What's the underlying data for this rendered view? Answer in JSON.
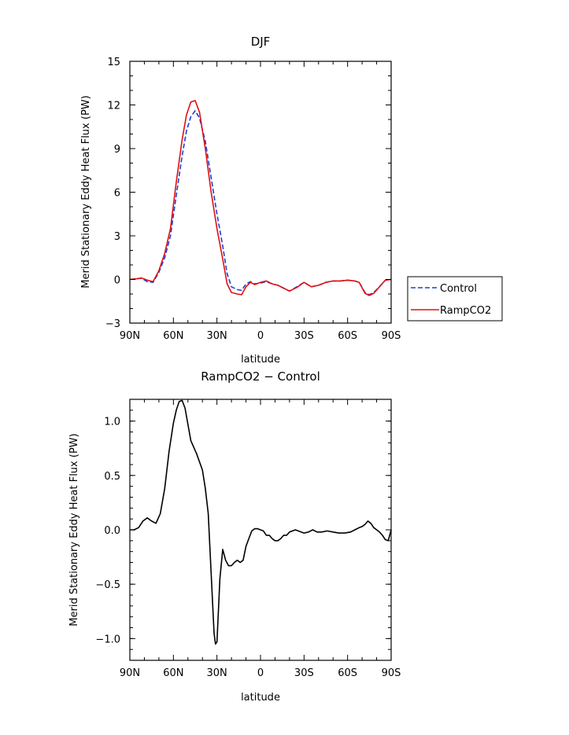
{
  "chart_data": [
    {
      "type": "line",
      "title": "DJF",
      "xlabel": "latitude",
      "ylabel": "Merid Stationary Eddy Heat Flux (PW)",
      "xlim": [
        90,
        -90
      ],
      "ylim": [
        -3,
        15
      ],
      "x_tick_values": [
        90,
        60,
        30,
        0,
        -30,
        -60,
        -90
      ],
      "x_tick_labels": [
        "90N",
        "60N",
        "30N",
        "0",
        "30S",
        "60S",
        "90S"
      ],
      "y_tick_values": [
        -3,
        0,
        3,
        6,
        9,
        12,
        15
      ],
      "y_tick_labels": [
        "−3",
        "0",
        "3",
        "6",
        "9",
        "12",
        "15"
      ],
      "legend_position": "outside-right",
      "series": [
        {
          "name": "Control",
          "style": "dashed",
          "color": "#1f3fd8",
          "x": [
            90,
            85,
            82,
            78,
            74,
            70,
            66,
            62,
            58,
            54,
            51,
            48,
            45,
            42,
            38,
            34,
            30,
            26,
            23,
            20,
            16,
            13,
            10,
            7,
            4,
            0,
            -4,
            -8,
            -12,
            -16,
            -20,
            -25,
            -30,
            -35,
            -40,
            -45,
            -50,
            -55,
            -60,
            -65,
            -68,
            -72,
            -75,
            -78,
            -82,
            -86,
            -90
          ],
          "y": [
            0.0,
            0.05,
            0.08,
            -0.15,
            -0.2,
            0.5,
            1.5,
            3.0,
            5.8,
            8.5,
            10.2,
            11.2,
            11.6,
            11.1,
            9.5,
            7.0,
            4.5,
            2.3,
            0.4,
            -0.5,
            -0.7,
            -0.75,
            -0.3,
            -0.15,
            -0.3,
            -0.25,
            -0.15,
            -0.3,
            -0.4,
            -0.6,
            -0.8,
            -0.5,
            -0.2,
            -0.5,
            -0.4,
            -0.2,
            -0.1,
            -0.1,
            -0.05,
            -0.1,
            -0.2,
            -0.9,
            -1.05,
            -0.9,
            -0.5,
            -0.05,
            0.0
          ]
        },
        {
          "name": "RampCO2",
          "style": "solid",
          "color": "#e01010",
          "x": [
            90,
            85,
            82,
            78,
            74,
            70,
            66,
            62,
            58,
            54,
            51,
            48,
            45,
            42,
            38,
            34,
            30,
            26,
            23,
            20,
            16,
            13,
            10,
            7,
            4,
            0,
            -4,
            -8,
            -12,
            -16,
            -20,
            -25,
            -30,
            -35,
            -40,
            -45,
            -50,
            -55,
            -60,
            -65,
            -68,
            -72,
            -75,
            -78,
            -82,
            -86,
            -90
          ],
          "y": [
            0.0,
            0.05,
            0.1,
            -0.05,
            -0.15,
            0.6,
            1.8,
            3.5,
            6.7,
            9.6,
            11.3,
            12.2,
            12.3,
            11.5,
            9.0,
            6.0,
            3.5,
            1.4,
            -0.3,
            -0.9,
            -1.0,
            -1.05,
            -0.5,
            -0.2,
            -0.35,
            -0.2,
            -0.1,
            -0.3,
            -0.4,
            -0.6,
            -0.8,
            -0.55,
            -0.2,
            -0.5,
            -0.4,
            -0.2,
            -0.1,
            -0.1,
            -0.05,
            -0.1,
            -0.2,
            -0.95,
            -1.1,
            -0.95,
            -0.5,
            -0.05,
            0.0
          ]
        }
      ]
    },
    {
      "type": "line",
      "title": "RampCO2 − Control",
      "xlabel": "latitude",
      "ylabel": "Merid Stationary Eddy Heat Flux (PW)",
      "xlim": [
        90,
        -90
      ],
      "ylim": [
        -1.2,
        1.2
      ],
      "x_tick_values": [
        90,
        60,
        30,
        0,
        -30,
        -60,
        -90
      ],
      "x_tick_labels": [
        "90N",
        "60N",
        "30N",
        "0",
        "30S",
        "60S",
        "90S"
      ],
      "y_tick_values": [
        -1.0,
        -0.5,
        0.0,
        0.5,
        1.0
      ],
      "y_tick_labels": [
        "−1.0",
        "−0.5",
        "0.0",
        "0.5",
        "1.0"
      ],
      "series": [
        {
          "style": "solid",
          "color": "#000000",
          "x": [
            90,
            87,
            84,
            81,
            78,
            75,
            72,
            69,
            66,
            63,
            60,
            58,
            56,
            54,
            52,
            48,
            44,
            40,
            38,
            36,
            34,
            32,
            31,
            30,
            28,
            26,
            24,
            22,
            20,
            18,
            16,
            14,
            12,
            10,
            8,
            6,
            4,
            2,
            0,
            -2,
            -4,
            -6,
            -8,
            -10,
            -12,
            -14,
            -16,
            -18,
            -20,
            -22,
            -24,
            -26,
            -28,
            -30,
            -33,
            -36,
            -39,
            -42,
            -46,
            -50,
            -54,
            -58,
            -62,
            -65,
            -68,
            -70,
            -72,
            -74,
            -76,
            -78,
            -80,
            -82,
            -84,
            -86,
            -88,
            -90
          ],
          "y": [
            0.0,
            0.0,
            0.02,
            0.08,
            0.11,
            0.08,
            0.06,
            0.15,
            0.38,
            0.72,
            0.98,
            1.1,
            1.18,
            1.19,
            1.12,
            0.82,
            0.7,
            0.55,
            0.38,
            0.15,
            -0.4,
            -0.95,
            -1.05,
            -1.03,
            -0.45,
            -0.18,
            -0.28,
            -0.33,
            -0.33,
            -0.3,
            -0.28,
            -0.3,
            -0.28,
            -0.15,
            -0.08,
            -0.01,
            0.01,
            0.01,
            0.0,
            -0.01,
            -0.05,
            -0.05,
            -0.08,
            -0.1,
            -0.1,
            -0.08,
            -0.05,
            -0.05,
            -0.02,
            -0.01,
            0.0,
            -0.01,
            -0.02,
            -0.03,
            -0.02,
            0.0,
            -0.02,
            -0.02,
            -0.01,
            -0.02,
            -0.03,
            -0.03,
            -0.02,
            0.0,
            0.02,
            0.03,
            0.05,
            0.08,
            0.06,
            0.02,
            0.0,
            -0.02,
            -0.05,
            -0.09,
            -0.1,
            0.0
          ]
        }
      ]
    }
  ]
}
